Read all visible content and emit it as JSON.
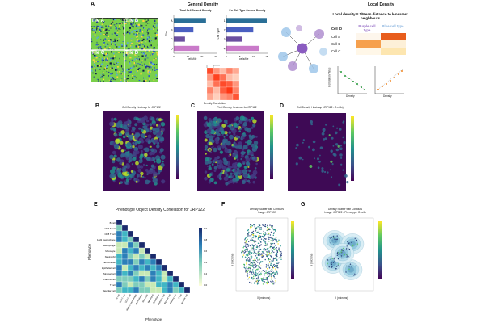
{
  "panels": {
    "A": {
      "letter": "A",
      "general_density_title": "General Density",
      "tiles": [
        "Tile A",
        "Tile B",
        "Tile C",
        "Tile D"
      ],
      "total_cell_chart": {
        "title": "Total Cell General Density",
        "ylabel": "Tile",
        "xlabel": "cells/tile",
        "categories": [
          "A",
          "B",
          "C",
          "D"
        ],
        "ticks": [
          "0",
          "10",
          "20",
          "30"
        ]
      },
      "per_cell_chart": {
        "title": "Per Cell Type General Density",
        "ylabel": "Cell Type",
        "xlabel": "cells/tile",
        "ticks": [
          "0",
          "5",
          "10",
          "15"
        ]
      },
      "density_correlation_label": "Density Correlation",
      "local_density_title": "Local Density",
      "local_density_formula": "Local density = 1/Mean distance to k-nearest neighbours",
      "cell_table": {
        "header": "Cell ID",
        "col1": "Purple cell type",
        "col2": "Blue cell type",
        "rows": [
          "Cell A",
          "Cell B",
          "Cell C"
        ]
      },
      "scatter_left_ylabel": "Correlation Value",
      "scatter_left_xlabel": "Density",
      "scatter_right_xlabel": "Density"
    },
    "B": {
      "letter": "B",
      "title": "Cell Density Heatmap for JRP122"
    },
    "C": {
      "letter": "C",
      "title": "Pixel Density Heatmap for JRP122"
    },
    "D": {
      "letter": "D",
      "title": "Cell Density Heatmap (JRP122 - B cells)"
    },
    "E": {
      "letter": "E",
      "title": "Phenotype Object Density Correlation for JRP122",
      "ylabel": "Phenotype",
      "xlabel": "Phenotype",
      "phenotypes": [
        "B cell",
        "CD4 T cell",
        "CD8 T cell",
        "M1/M2 macrophage",
        "Macrophage",
        "Monocyte",
        "Neutrophil",
        "Endothelial",
        "Epithelial cell",
        "Stromal cell",
        "Plasma cell",
        "T cell",
        "Vascular cell"
      ],
      "colorbar_ticks": [
        "1.0",
        "0.8",
        "0.6",
        "0.4",
        "0.2",
        "0.0"
      ]
    },
    "F": {
      "letter": "F",
      "title": "Density Scatter with Contours",
      "subtitle": "Image: JRP122",
      "xlabel": "X (microns)",
      "ylabel": "Y (microns)"
    },
    "G": {
      "letter": "G",
      "title": "Density Scatter with Contours",
      "subtitle": "Image: JRP122 - Phenotype: B cells",
      "xlabel": "X (microns)",
      "ylabel": "Y (microns)"
    }
  },
  "chart_data": [
    {
      "type": "bar",
      "title": "Total Cell General Density",
      "categories": [
        "A",
        "B",
        "C",
        "D"
      ],
      "values": [
        23,
        14,
        8,
        18
      ],
      "colors": [
        "#2a6f97",
        "#4a5fc1",
        "#6b4fa0",
        "#c97ac9"
      ],
      "xlim": [
        0,
        30
      ],
      "orientation": "horizontal"
    },
    {
      "type": "bar",
      "title": "Per Cell Type General Density",
      "categories": [
        "1",
        "2",
        "3",
        "4"
      ],
      "values": [
        15,
        10,
        6,
        12
      ],
      "colors": [
        "#2a6f97",
        "#4a5fc1",
        "#6b4fa0",
        "#c97ac9"
      ],
      "xlim": [
        0,
        15
      ],
      "orientation": "horizontal"
    },
    {
      "type": "heatmap",
      "title": "Density Correlation",
      "values": [
        [
          0.9,
          0.5,
          0.3,
          0.6,
          0.4
        ],
        [
          0.5,
          0.95,
          0.7,
          0.3,
          0.2
        ],
        [
          0.3,
          0.7,
          0.9,
          0.8,
          0.5
        ],
        [
          0.6,
          0.3,
          0.8,
          1.0,
          0.6
        ],
        [
          0.4,
          0.2,
          0.5,
          0.6,
          0.85
        ]
      ]
    },
    {
      "type": "heatmap",
      "title": "Phenotype Object Density Correlation for JRP122",
      "size": 13,
      "colorbar_range": [
        0,
        1
      ]
    }
  ]
}
